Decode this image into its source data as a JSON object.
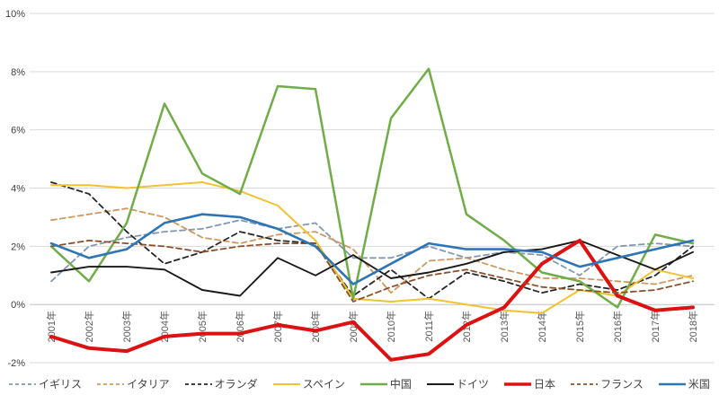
{
  "chart_data": {
    "type": "line",
    "title": "",
    "xlabel": "",
    "ylabel": "",
    "ylim": [
      -2,
      10
    ],
    "grid": true,
    "legend_position": "bottom",
    "categories": [
      "2001年",
      "2002年",
      "2003年",
      "2004年",
      "2005年",
      "2006年",
      "2007年",
      "2008年",
      "2009年",
      "2010年",
      "2011年",
      "2012年",
      "2013年",
      "2014年",
      "2015年",
      "2016年",
      "2017年",
      "2018年"
    ],
    "y_ticks": [
      {
        "value": 10,
        "label": "10%"
      },
      {
        "value": 8,
        "label": "8%"
      },
      {
        "value": 6,
        "label": "6%"
      },
      {
        "value": 4,
        "label": "4%"
      },
      {
        "value": 2,
        "label": "2%"
      },
      {
        "value": 0,
        "label": "0%"
      },
      {
        "value": -2,
        "label": "-2%"
      }
    ],
    "series": [
      {
        "key": "uk",
        "label": "イギリス",
        "color": "#8497B0",
        "dash": "6 4",
        "width": 1.8,
        "values": [
          0.8,
          2.0,
          2.3,
          2.5,
          2.6,
          2.9,
          2.6,
          2.8,
          1.6,
          1.6,
          2.0,
          1.6,
          1.8,
          1.7,
          1.0,
          2.0,
          2.1,
          2.0
        ]
      },
      {
        "key": "italy",
        "label": "イタリア",
        "color": "#CE9862",
        "dash": "6 4",
        "width": 1.8,
        "values": [
          2.9,
          3.1,
          3.3,
          3.0,
          2.3,
          2.1,
          2.4,
          2.5,
          1.9,
          0.4,
          1.5,
          1.6,
          1.2,
          0.9,
          0.9,
          0.8,
          0.7,
          1.0
        ]
      },
      {
        "key": "netherlands",
        "label": "オランダ",
        "color": "#262626",
        "dash": "6 4",
        "width": 1.8,
        "values": [
          4.2,
          3.8,
          2.5,
          1.4,
          1.8,
          2.5,
          2.2,
          2.1,
          0.3,
          1.2,
          0.2,
          1.1,
          0.8,
          0.4,
          0.7,
          0.5,
          1.0,
          2.0
        ]
      },
      {
        "key": "spain",
        "label": "スペイン",
        "color": "#F2C230",
        "dash": "",
        "width": 2,
        "values": [
          4.1,
          4.1,
          4.0,
          4.1,
          4.2,
          3.9,
          3.4,
          2.2,
          0.2,
          0.1,
          0.2,
          0.0,
          -0.2,
          -0.3,
          0.5,
          0.3,
          1.2,
          0.9
        ]
      },
      {
        "key": "china",
        "label": "中国",
        "color": "#70AD47",
        "dash": "",
        "width": 2.5,
        "values": [
          2.0,
          0.8,
          2.8,
          6.9,
          4.5,
          3.8,
          7.5,
          7.4,
          0.2,
          6.4,
          8.1,
          3.1,
          2.2,
          1.1,
          0.8,
          -0.1,
          2.4,
          2.1
        ]
      },
      {
        "key": "germany",
        "label": "ドイツ",
        "color": "#1a1a1a",
        "dash": "",
        "width": 1.9,
        "values": [
          1.1,
          1.3,
          1.3,
          1.2,
          0.5,
          0.3,
          1.6,
          1.0,
          1.7,
          0.9,
          1.1,
          1.4,
          1.8,
          1.9,
          2.2,
          1.7,
          1.2,
          1.8
        ]
      },
      {
        "key": "japan",
        "label": "日本",
        "color": "#DD1111",
        "dash": "",
        "width": 4,
        "values": [
          -1.1,
          -1.5,
          -1.6,
          -1.1,
          -1.0,
          -1.0,
          -0.7,
          -0.9,
          -0.6,
          -1.9,
          -1.7,
          -0.7,
          -0.1,
          1.4,
          2.2,
          0.3,
          -0.2,
          -0.1
        ]
      },
      {
        "key": "france",
        "label": "フランス",
        "color": "#8C512C",
        "dash": "6 4",
        "width": 1.8,
        "values": [
          2.0,
          2.2,
          2.1,
          2.0,
          1.8,
          2.0,
          2.1,
          2.1,
          0.1,
          0.6,
          1.0,
          1.2,
          0.9,
          0.6,
          0.5,
          0.4,
          0.5,
          0.8
        ]
      },
      {
        "key": "usa",
        "label": "米国",
        "color": "#2E75B6",
        "dash": "",
        "width": 2.6,
        "values": [
          2.1,
          1.6,
          1.9,
          2.8,
          3.1,
          3.0,
          2.6,
          2.0,
          0.7,
          1.4,
          2.1,
          1.9,
          1.9,
          1.8,
          1.3,
          1.6,
          1.9,
          2.2
        ]
      }
    ]
  }
}
